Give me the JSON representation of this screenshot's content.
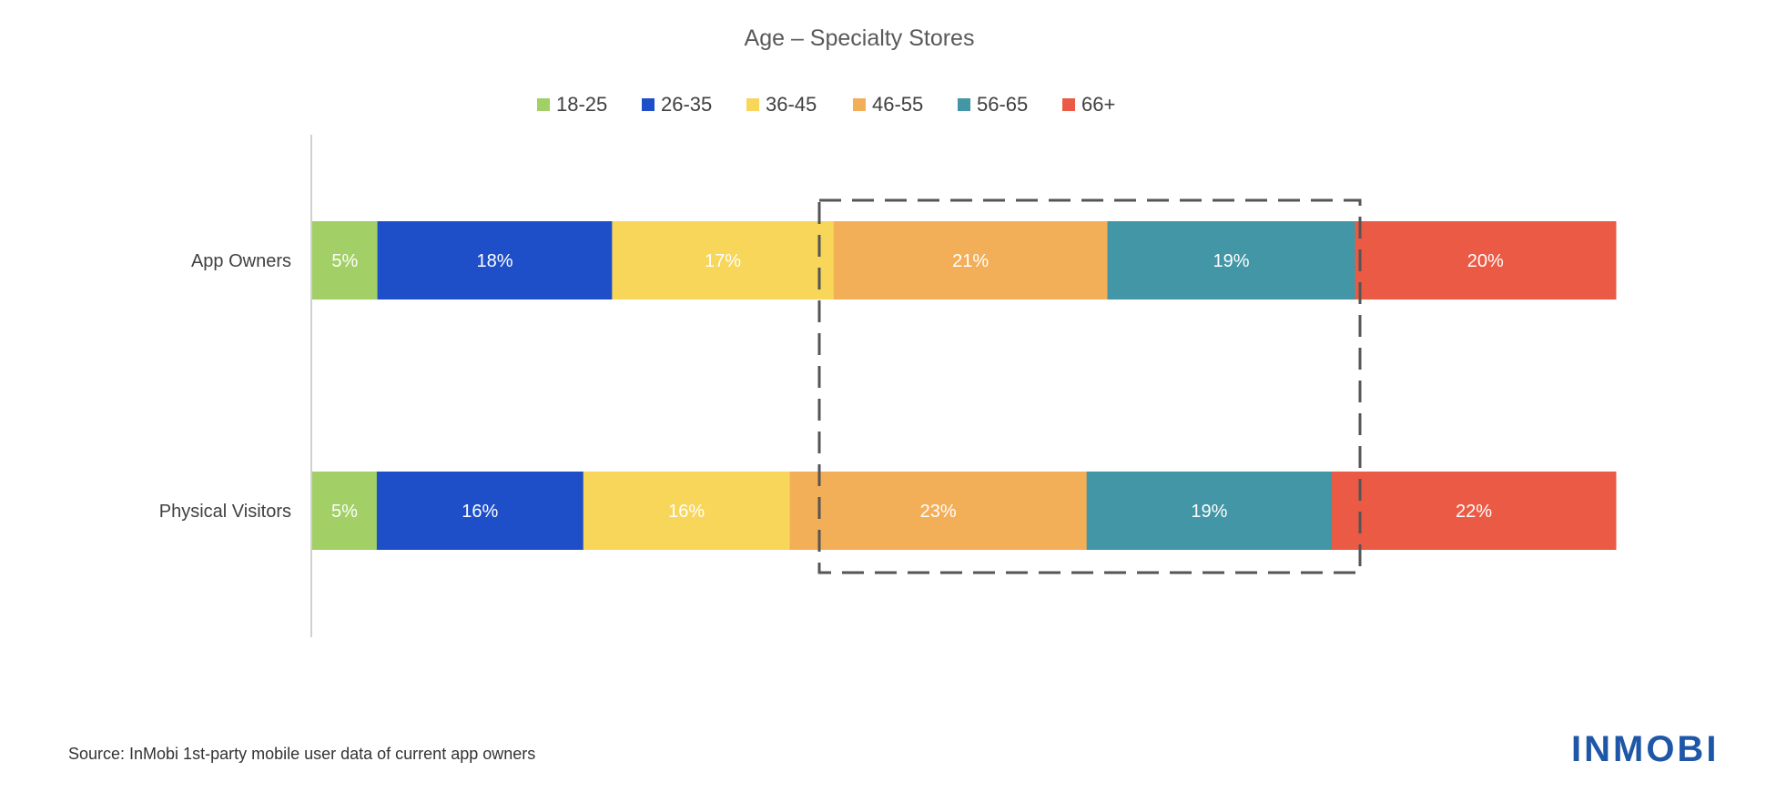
{
  "chart_data": {
    "type": "bar",
    "orientation": "horizontal",
    "stacked": "100%",
    "title": "Age – Specialty Stores",
    "categories": [
      "App Owners",
      "Physical Visitors"
    ],
    "series": [
      {
        "name": "18-25",
        "color": "#A2CF66",
        "values": [
          5,
          5
        ]
      },
      {
        "name": "26-35",
        "color": "#1F4FC8",
        "values": [
          18,
          16
        ]
      },
      {
        "name": "36-45",
        "color": "#F7D65A",
        "values": [
          17,
          16
        ]
      },
      {
        "name": "46-55",
        "color": "#F3AE58",
        "values": [
          21,
          23
        ]
      },
      {
        "name": "56-65",
        "color": "#4296A5",
        "values": [
          19,
          19
        ]
      },
      {
        "name": "66+",
        "color": "#EB5A44",
        "values": [
          20,
          22
        ]
      }
    ],
    "data_labels": [
      [
        "5%",
        "18%",
        "17%",
        "21%",
        "19%",
        "20%"
      ],
      [
        "5%",
        "16%",
        "16%",
        "23%",
        "19%",
        "22%"
      ]
    ],
    "legend_position": "top",
    "grid": false,
    "highlight": {
      "style": "dashed box",
      "series": [
        "46-55",
        "56-65"
      ]
    }
  },
  "footer": {
    "source": "Source: InMobi 1st-party mobile user data of current app owners",
    "logo_text": "INMOBI",
    "logo_color": "#1F57A8"
  }
}
